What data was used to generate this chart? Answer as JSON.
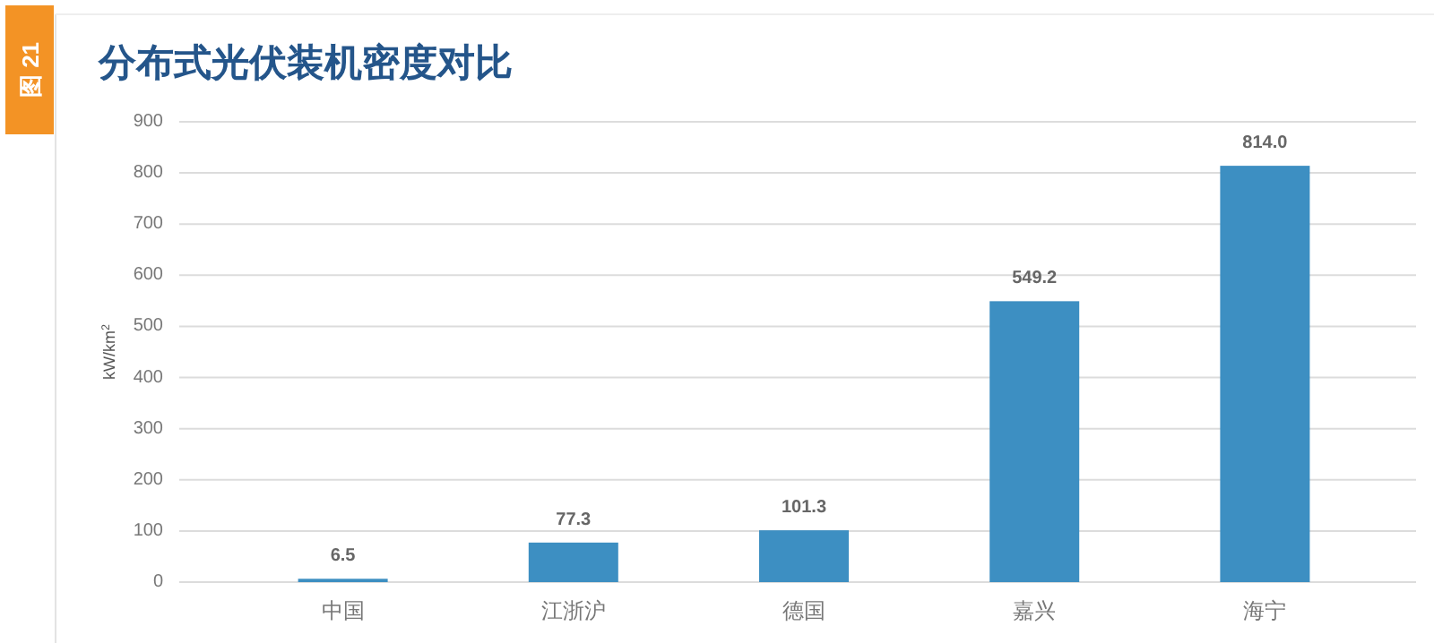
{
  "chart_data": {
    "type": "bar",
    "title": "分布式光伏装机密度对比",
    "annotations": [
      "图 21"
    ],
    "ylabel": "kW/km$^{2}$",
    "categories": [
      "中国",
      "江浙沪",
      "德国",
      "嘉兴",
      "海宁"
    ],
    "values": [
      6.5,
      77.3,
      101.3,
      549.2,
      814.0
    ],
    "value_labels": [
      "6.5",
      "77.3",
      "101.3",
      "549.2",
      "814.0"
    ],
    "color": "#3d8fc2",
    "ylim": [
      0,
      900
    ],
    "yticks": [
      0,
      100,
      200,
      300,
      400,
      500,
      600,
      700,
      800,
      900
    ],
    "grid": "y"
  }
}
